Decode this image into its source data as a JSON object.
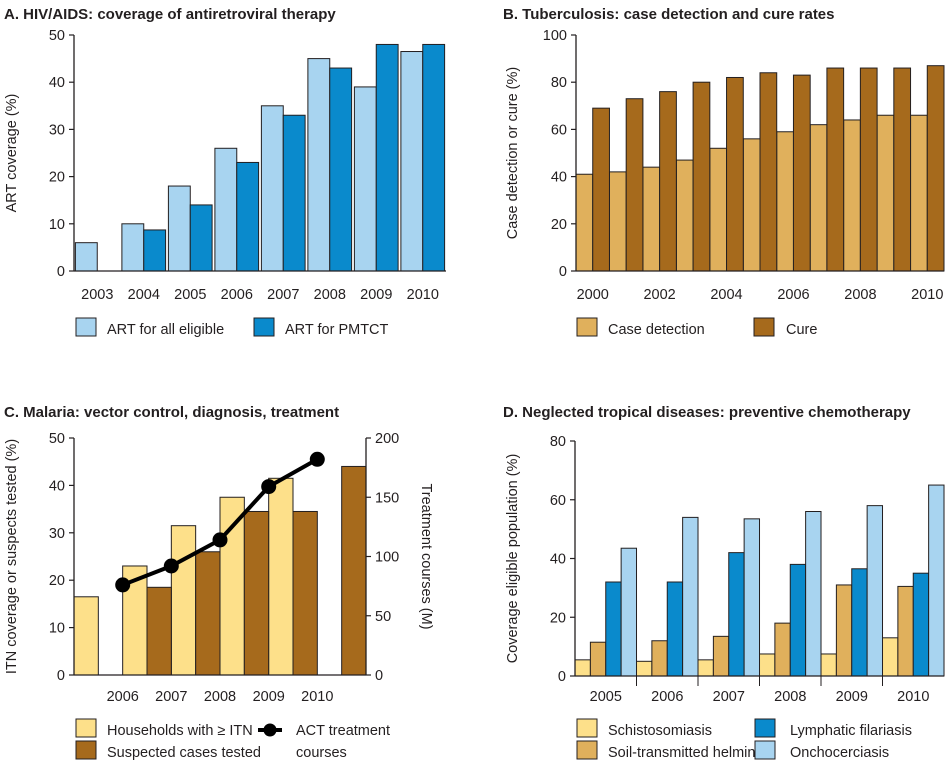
{
  "chart_data": [
    {
      "id": "A",
      "type": "bar",
      "title": "A. HIV/AIDS: coverage of antiretroviral therapy",
      "ylabel": "ART coverage (%)",
      "ylim": [
        0,
        50
      ],
      "yticks": [
        0,
        10,
        20,
        30,
        40,
        50
      ],
      "categories": [
        "2003",
        "2004",
        "2005",
        "2006",
        "2007",
        "2008",
        "2009",
        "2010"
      ],
      "series": [
        {
          "name": "ART for all eligible",
          "color": "#a8d4f0",
          "values": [
            6,
            10,
            18,
            26,
            35,
            45,
            39,
            46.5
          ]
        },
        {
          "name": "ART for PMTCT",
          "color": "#0a8acc",
          "values": [
            null,
            8.7,
            14,
            23,
            33,
            43,
            48,
            48
          ]
        }
      ],
      "grid": false,
      "legend_position": "bottom"
    },
    {
      "id": "B",
      "type": "bar",
      "title": "B. Tuberculosis: case detection and cure rates",
      "ylabel": "Case detection or cure (%)",
      "ylim": [
        0,
        100
      ],
      "yticks": [
        0,
        20,
        40,
        60,
        80,
        100
      ],
      "categories": [
        "2000",
        "2001",
        "2002",
        "2003",
        "2004",
        "2005",
        "2006",
        "2007",
        "2008",
        "2009",
        "2010"
      ],
      "xtick_labels": [
        "2000",
        "",
        "2002",
        "",
        "2004",
        "",
        "2006",
        "",
        "2008",
        "",
        "2010"
      ],
      "series": [
        {
          "name": "Case detection",
          "color": "#e0b05c",
          "values": [
            41,
            42,
            44,
            47,
            52,
            56,
            59,
            62,
            64,
            66,
            66
          ]
        },
        {
          "name": "Cure",
          "color": "#a66a1c",
          "values": [
            69,
            73,
            76,
            80,
            82,
            84,
            83,
            86,
            86,
            86,
            87
          ]
        }
      ],
      "grid": false,
      "legend_position": "bottom"
    },
    {
      "id": "C",
      "type": "bar",
      "title": "C. Malaria: vector control, diagnosis, treatment",
      "ylabel": "ITN coverage or suspects tested (%)",
      "ylabel_right": "Treatment courses (M)",
      "ylim": [
        0,
        50
      ],
      "yticks": [
        0,
        10,
        20,
        30,
        40,
        50
      ],
      "ylim_right": [
        0,
        200
      ],
      "yticks_right": [
        0,
        50,
        100,
        150,
        200
      ],
      "categories": [
        "2005",
        "2006",
        "2007",
        "2008",
        "2009",
        "2010"
      ],
      "xtick_labels": [
        "",
        "2006",
        "2007",
        "2008",
        "2009",
        "2010"
      ],
      "series": [
        {
          "name": "Households with ≥ ITN",
          "color": "#fde08a",
          "values": [
            16.5,
            23,
            31.5,
            37.5,
            41.5,
            null
          ]
        },
        {
          "name": "Suspected cases tested",
          "color": "#a66a1c",
          "values": [
            null,
            18.5,
            26,
            34.5,
            34.5,
            44
          ]
        }
      ],
      "line_series": {
        "name": "ACT treatment courses",
        "name_lines": [
          "ACT treatment",
          "courses"
        ],
        "color": "#000000",
        "x": [
          "2006",
          "2007",
          "2008",
          "2009",
          "2010"
        ],
        "values": [
          76,
          92,
          114,
          159,
          182
        ]
      },
      "grid": false,
      "legend_position": "bottom"
    },
    {
      "id": "D",
      "type": "bar",
      "title": "D. Neglected tropical diseases: preventive chemotherapy",
      "ylabel": "Coverage eligible population (%)",
      "ylim": [
        0,
        80
      ],
      "yticks": [
        0,
        20,
        40,
        60,
        80
      ],
      "categories": [
        "2005",
        "2006",
        "2007",
        "2008",
        "2009",
        "2010"
      ],
      "series": [
        {
          "name": "Schistosomiasis",
          "color": "#fde08a",
          "values": [
            5.5,
            5,
            5.5,
            7.5,
            7.5,
            13
          ]
        },
        {
          "name": "Soil-transmitted helminths",
          "color": "#e0b05c",
          "values": [
            11.5,
            12,
            13.5,
            18,
            31,
            30.5
          ]
        },
        {
          "name": "Lymphatic filariasis",
          "color": "#0a8acc",
          "values": [
            32,
            32,
            42,
            38,
            36.5,
            35
          ]
        },
        {
          "name": "Onchocerciasis",
          "color": "#a8d4f0",
          "values": [
            43.5,
            54,
            53.5,
            56,
            58,
            65
          ]
        }
      ],
      "grid": false,
      "legend_position": "bottom"
    }
  ]
}
